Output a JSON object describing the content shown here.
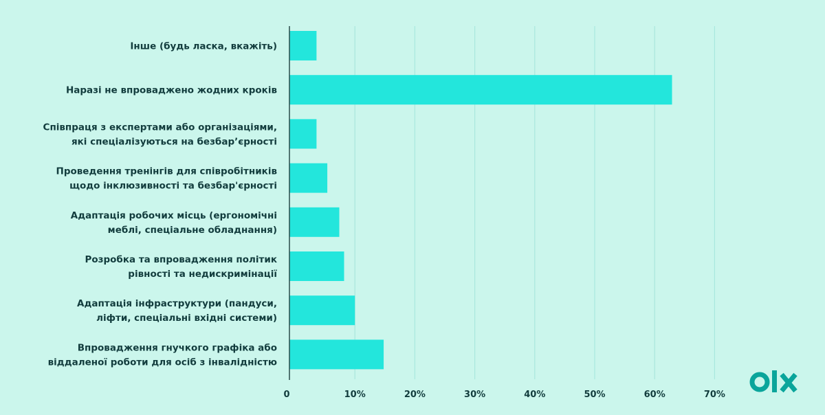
{
  "chart_data": {
    "type": "bar",
    "orientation": "horizontal",
    "categories": [
      [
        "Інше (будь ласка, вкажіть)"
      ],
      [
        "Наразі не впроваджено жодних кроків"
      ],
      [
        "Співпраця з експертами або організаціями,",
        "які спеціалізуються на безбар’єрності"
      ],
      [
        "Проведення тренінгів для співробітників",
        "щодо інклюзивності та безбар'єрності"
      ],
      [
        "Адаптація робочих місць (ергономічні",
        "меблі, спеціальне обладнання)"
      ],
      [
        "Розробка та впровадження політик",
        "рівності та недискримінації"
      ],
      [
        "Адаптація інфраструктури (пандуси,",
        "ліфти, спеціальні вхідні системи)"
      ],
      [
        "Впровадження гнучкого графіка або",
        "віддаленої роботи для осіб з інвалідністю"
      ]
    ],
    "values": [
      3.6,
      62.9,
      3.6,
      5.4,
      7.4,
      8.2,
      10,
      14.8
    ],
    "xlim": [
      0,
      70
    ],
    "xticks": [
      "0",
      "10%",
      "20%",
      "30%",
      "40%",
      "50%",
      "60%",
      "70%"
    ],
    "grid": true,
    "title": "",
    "xlabel": "",
    "ylabel": "",
    "bar_color": "#23e6dc",
    "grid_color": "#a9e8de",
    "text_color": "#123c3d",
    "background": "#cbf6ec"
  },
  "logo": {
    "text": "olx",
    "color": "#0aa59b"
  }
}
